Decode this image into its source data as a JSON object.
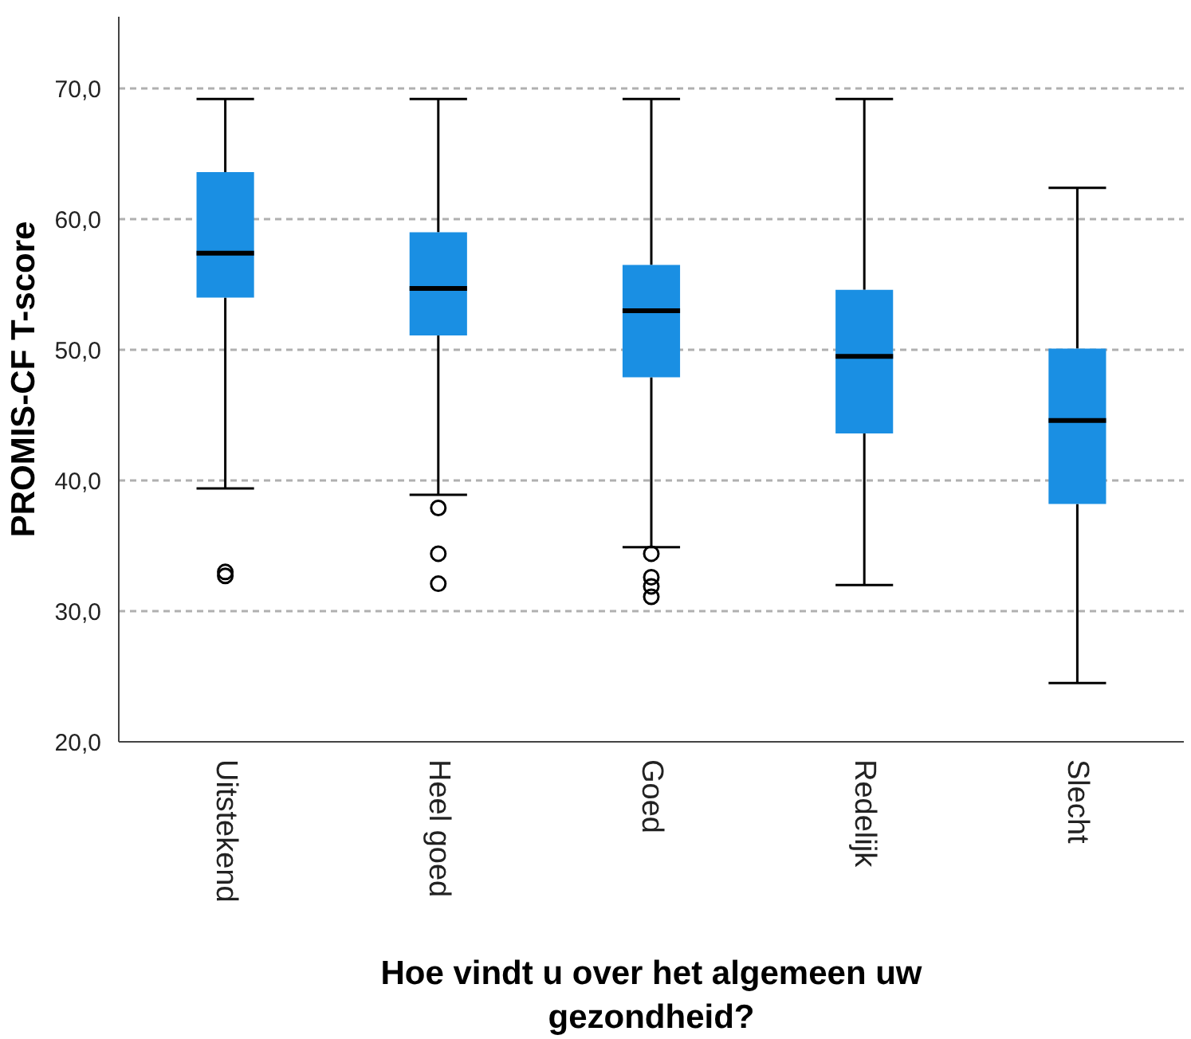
{
  "chart_data": {
    "type": "box",
    "xlabel": "Hoe vindt u over het algemeen uw gezondheid?",
    "ylabel": "PROMIS-CF T-score",
    "categories": [
      "Uitstekend",
      "Heel goed",
      "Goed",
      "Redelijk",
      "Slecht"
    ],
    "color": "#1a8fe3",
    "boxes": [
      {
        "low": 39.4,
        "q1": 54.0,
        "median": 57.4,
        "q3": 63.6,
        "high": 69.2,
        "outliers": [
          32.7,
          33.0
        ]
      },
      {
        "low": 38.9,
        "q1": 51.1,
        "median": 54.7,
        "q3": 59.0,
        "high": 69.2,
        "outliers": [
          37.9,
          34.4,
          32.1
        ]
      },
      {
        "low": 34.9,
        "q1": 47.9,
        "median": 53.0,
        "q3": 56.5,
        "high": 69.2,
        "outliers": [
          34.4,
          32.6,
          31.9,
          31.1
        ]
      },
      {
        "low": 32.0,
        "q1": 43.6,
        "median": 49.5,
        "q3": 54.6,
        "high": 69.2
      },
      {
        "low": 24.5,
        "q1": 38.2,
        "median": 44.6,
        "q3": 50.1,
        "high": 62.4
      }
    ],
    "ylim": [
      20,
      75.5
    ],
    "yticks": [
      {
        "value": 20,
        "label": "20,0"
      },
      {
        "value": 30,
        "label": "30,0"
      },
      {
        "value": 40,
        "label": "40,0"
      },
      {
        "value": 50,
        "label": "50,0"
      },
      {
        "value": 60,
        "label": "60,0"
      },
      {
        "value": 70,
        "label": "70,0"
      }
    ],
    "grid": "y"
  }
}
